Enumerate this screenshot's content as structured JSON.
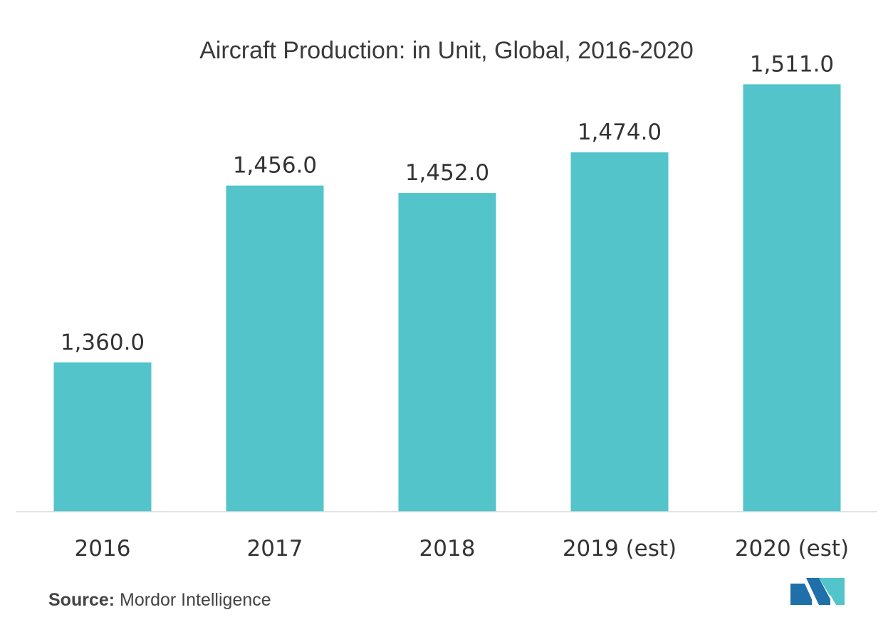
{
  "chart_data": {
    "type": "bar",
    "title": "Aircraft Production: in Unit, Global, 2016-2020",
    "categories": [
      "2016",
      "2017",
      "2018",
      "2019 (est)",
      "2020 (est)"
    ],
    "values": [
      1360.0,
      1456.0,
      1452.0,
      1474.0,
      1511.0
    ],
    "value_labels": [
      "1,360.0",
      "1,456.0",
      "1,452.0",
      "1,474.0",
      "1,511.0"
    ],
    "bar_color": "#52C4CA",
    "grid": false,
    "legend": "none"
  },
  "source": {
    "label": "Source:",
    "text": "Mordor Intelligence"
  },
  "logo": {
    "icon": "mordor-intelligence-logo-icon",
    "colors": [
      "#1F6FA8",
      "#52C4CA"
    ]
  }
}
